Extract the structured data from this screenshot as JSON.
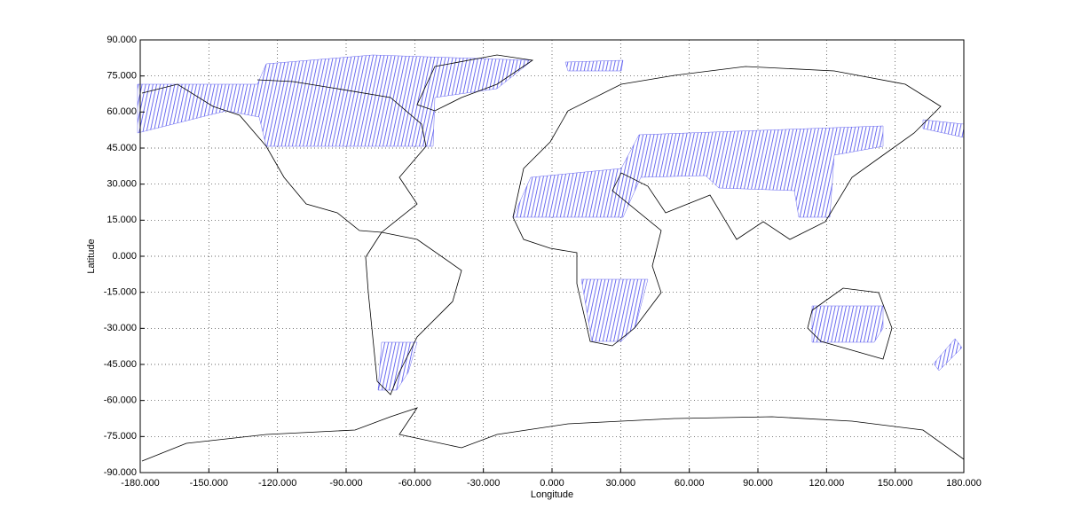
{
  "chart_data": {
    "type": "map",
    "xlabel": "Longitude",
    "ylabel": "Latitude",
    "xlim": [
      -180,
      180
    ],
    "ylim": [
      -90,
      90
    ],
    "xticks": [
      {
        "value": -180,
        "label": "-180.000"
      },
      {
        "value": -150,
        "label": "-150.000"
      },
      {
        "value": -120,
        "label": "-120.000"
      },
      {
        "value": -90,
        "label": "-90.000"
      },
      {
        "value": -60,
        "label": "-60.000"
      },
      {
        "value": -30,
        "label": "-30.000"
      },
      {
        "value": 0,
        "label": "0.000"
      },
      {
        "value": 30,
        "label": "30.000"
      },
      {
        "value": 60,
        "label": "60.000"
      },
      {
        "value": 90,
        "label": "90.000"
      },
      {
        "value": 120,
        "label": "120.000"
      },
      {
        "value": 150,
        "label": "150.000"
      },
      {
        "value": 180,
        "label": "180.000"
      }
    ],
    "yticks": [
      {
        "value": 90,
        "label": "90.000"
      },
      {
        "value": 75,
        "label": "75.000"
      },
      {
        "value": 60,
        "label": "60.000"
      },
      {
        "value": 45,
        "label": "45.000"
      },
      {
        "value": 30,
        "label": "30.000"
      },
      {
        "value": 15,
        "label": "15.000"
      },
      {
        "value": 0,
        "label": "0.000"
      },
      {
        "value": -15,
        "label": "-15.000"
      },
      {
        "value": -30,
        "label": "-30.000"
      },
      {
        "value": -45,
        "label": "-45.000"
      },
      {
        "value": -60,
        "label": "-60.000"
      },
      {
        "value": -75,
        "label": "-75.000"
      },
      {
        "value": -90,
        "label": "-90.000"
      }
    ],
    "grid": true
  }
}
